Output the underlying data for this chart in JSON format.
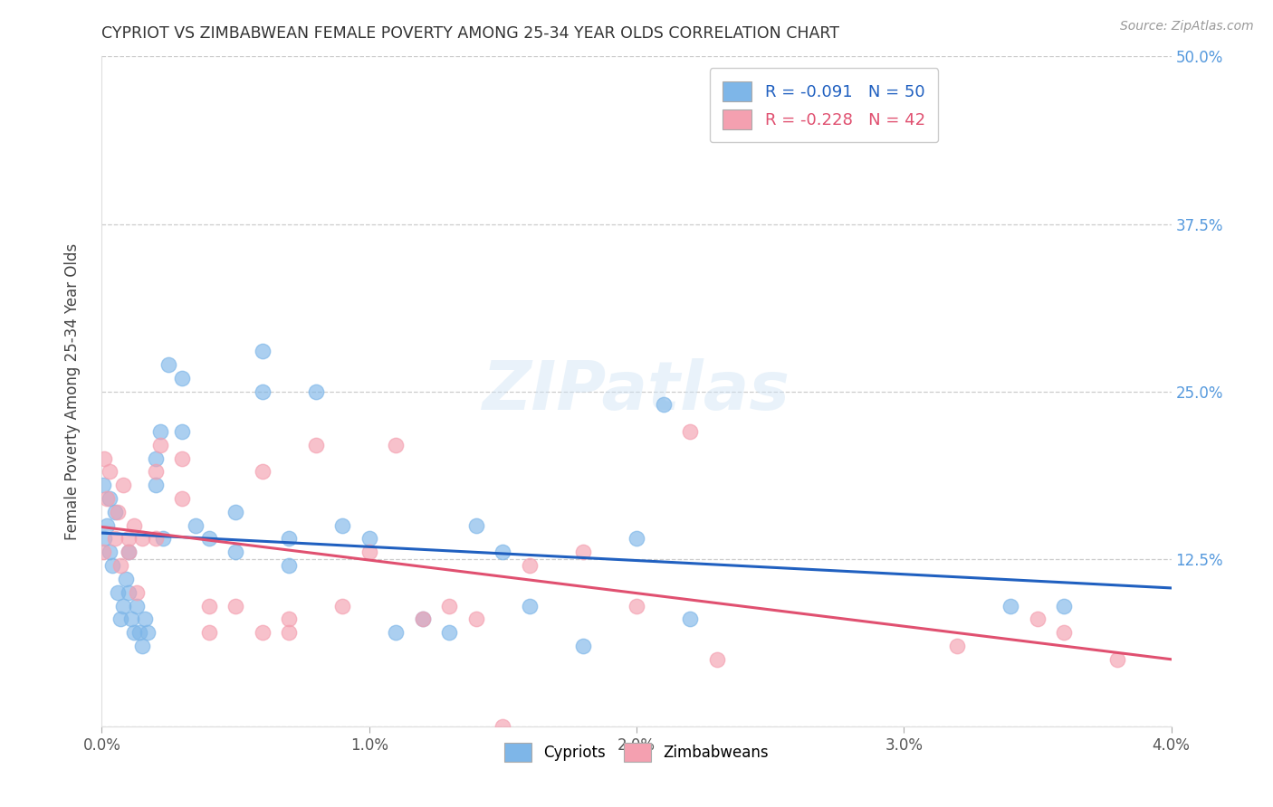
{
  "title": "CYPRIOT VS ZIMBABWEAN FEMALE POVERTY AMONG 25-34 YEAR OLDS CORRELATION CHART",
  "source": "Source: ZipAtlas.com",
  "xlabel": "",
  "ylabel": "Female Poverty Among 25-34 Year Olds",
  "xlim": [
    0.0,
    0.04
  ],
  "ylim": [
    0.0,
    0.5
  ],
  "xtick_labels": [
    "0.0%",
    "1.0%",
    "2.0%",
    "3.0%",
    "4.0%"
  ],
  "xtick_vals": [
    0.0,
    0.01,
    0.02,
    0.03,
    0.04
  ],
  "ytick_vals": [
    0.0,
    0.125,
    0.25,
    0.375,
    0.5
  ],
  "ytick_labels_right": [
    "",
    "12.5%",
    "25.0%",
    "37.5%",
    "50.0%"
  ],
  "grid_color": "#cccccc",
  "watermark": "ZIPatlas",
  "legend_R1": "R = -0.091",
  "legend_N1": "N = 50",
  "legend_R2": "R = -0.228",
  "legend_N2": "N = 42",
  "cypriot_color": "#7EB6E8",
  "zimbabwean_color": "#F4A0B0",
  "cypriot_line_color": "#2060C0",
  "zimbabwean_line_color": "#E05070",
  "cypriot_x": [
    5e-05,
    0.0001,
    0.0002,
    0.0003,
    0.0003,
    0.0004,
    0.0005,
    0.0006,
    0.0007,
    0.0008,
    0.0009,
    0.001,
    0.001,
    0.0011,
    0.0012,
    0.0013,
    0.0014,
    0.0015,
    0.0016,
    0.0017,
    0.002,
    0.002,
    0.0022,
    0.0023,
    0.0025,
    0.003,
    0.003,
    0.0035,
    0.004,
    0.005,
    0.005,
    0.006,
    0.006,
    0.007,
    0.007,
    0.008,
    0.009,
    0.01,
    0.011,
    0.012,
    0.013,
    0.014,
    0.015,
    0.016,
    0.018,
    0.02,
    0.021,
    0.022,
    0.034,
    0.036
  ],
  "cypriot_y": [
    0.18,
    0.14,
    0.15,
    0.17,
    0.13,
    0.12,
    0.16,
    0.1,
    0.08,
    0.09,
    0.11,
    0.13,
    0.1,
    0.08,
    0.07,
    0.09,
    0.07,
    0.06,
    0.08,
    0.07,
    0.2,
    0.18,
    0.22,
    0.14,
    0.27,
    0.22,
    0.26,
    0.15,
    0.14,
    0.16,
    0.13,
    0.25,
    0.28,
    0.14,
    0.12,
    0.25,
    0.15,
    0.14,
    0.07,
    0.08,
    0.07,
    0.15,
    0.13,
    0.09,
    0.06,
    0.14,
    0.24,
    0.08,
    0.09,
    0.09
  ],
  "zimbabwean_x": [
    5e-05,
    0.0001,
    0.0002,
    0.0003,
    0.0005,
    0.0006,
    0.0007,
    0.0008,
    0.001,
    0.001,
    0.0012,
    0.0013,
    0.0015,
    0.002,
    0.002,
    0.0022,
    0.003,
    0.003,
    0.004,
    0.004,
    0.005,
    0.006,
    0.006,
    0.007,
    0.007,
    0.008,
    0.009,
    0.01,
    0.011,
    0.012,
    0.013,
    0.014,
    0.015,
    0.016,
    0.018,
    0.02,
    0.022,
    0.023,
    0.032,
    0.035,
    0.036,
    0.038
  ],
  "zimbabwean_y": [
    0.13,
    0.2,
    0.17,
    0.19,
    0.14,
    0.16,
    0.12,
    0.18,
    0.14,
    0.13,
    0.15,
    0.1,
    0.14,
    0.19,
    0.14,
    0.21,
    0.17,
    0.2,
    0.09,
    0.07,
    0.09,
    0.19,
    0.07,
    0.08,
    0.07,
    0.21,
    0.09,
    0.13,
    0.21,
    0.08,
    0.09,
    0.08,
    0.0,
    0.12,
    0.13,
    0.09,
    0.22,
    0.05,
    0.06,
    0.08,
    0.07,
    0.05
  ]
}
